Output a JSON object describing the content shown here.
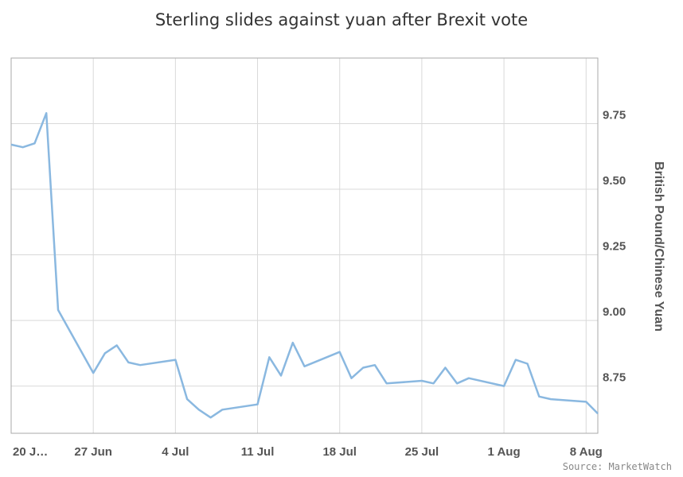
{
  "chart_data": {
    "type": "line",
    "title": "Sterling slides against yuan after Brexit vote",
    "xlabel": "",
    "ylabel": "British Pound/Chinese Yuan",
    "source": "Source: MarketWatch",
    "x_tick_labels": [
      "20 J…",
      "27 Jun",
      "4 Jul",
      "11 Jul",
      "18 Jul",
      "25 Jul",
      "1 Aug",
      "8 Aug"
    ],
    "y_ticks": [
      "8.75",
      "9.00",
      "9.25",
      "9.50",
      "9.75"
    ],
    "ylim": [
      8.57,
      10.0
    ],
    "grid": true,
    "colors": {
      "line": "#8ab8e0",
      "grid": "#d9d9d9",
      "frame": "#aaaaaa"
    },
    "series": [
      {
        "x": [
          "2016-06-20",
          "2016-06-21",
          "2016-06-22",
          "2016-06-23",
          "2016-06-24",
          "2016-06-27",
          "2016-06-28",
          "2016-06-29",
          "2016-06-30",
          "2016-07-01",
          "2016-07-04",
          "2016-07-05",
          "2016-07-06",
          "2016-07-07",
          "2016-07-08",
          "2016-07-11",
          "2016-07-12",
          "2016-07-13",
          "2016-07-14",
          "2016-07-15",
          "2016-07-18",
          "2016-07-19",
          "2016-07-20",
          "2016-07-21",
          "2016-07-22",
          "2016-07-25",
          "2016-07-26",
          "2016-07-27",
          "2016-07-28",
          "2016-07-29",
          "2016-08-01",
          "2016-08-02",
          "2016-08-03",
          "2016-08-04",
          "2016-08-05",
          "2016-08-08",
          "2016-08-09"
        ],
        "values": [
          9.67,
          9.66,
          9.675,
          9.79,
          9.04,
          8.8,
          8.875,
          8.905,
          8.84,
          8.83,
          8.85,
          8.7,
          8.66,
          8.63,
          8.66,
          8.68,
          8.86,
          8.79,
          8.915,
          8.825,
          8.88,
          8.78,
          8.82,
          8.83,
          8.76,
          8.77,
          8.76,
          8.82,
          8.76,
          8.78,
          8.75,
          8.85,
          8.835,
          8.71,
          8.7,
          8.69,
          8.645
        ]
      }
    ]
  }
}
